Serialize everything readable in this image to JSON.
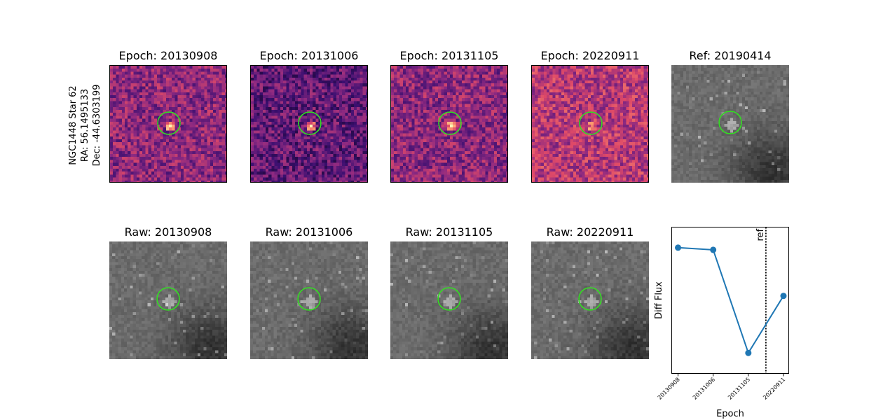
{
  "star_label": {
    "line1": "NGC1448 Star 62",
    "line2": "RA: 56.1495133",
    "line3": "Dec: -44.6303199"
  },
  "top_row": [
    {
      "title": "Epoch: 20130908",
      "colormap": "magma"
    },
    {
      "title": "Epoch: 20131006",
      "colormap": "magma"
    },
    {
      "title": "Epoch: 20131105",
      "colormap": "magma"
    },
    {
      "title": "Epoch: 20220911",
      "colormap": "magma"
    },
    {
      "title": "Ref: 20190414",
      "colormap": "gray"
    }
  ],
  "bottom_row": [
    {
      "title": "Raw: 20130908",
      "colormap": "gray"
    },
    {
      "title": "Raw: 20131006",
      "colormap": "gray"
    },
    {
      "title": "Raw: 20131105",
      "colormap": "gray"
    },
    {
      "title": "Raw: 20220911",
      "colormap": "gray"
    }
  ],
  "marker_color": "#33dd22",
  "chart_data": {
    "type": "line",
    "categories": [
      "20130908",
      "20131006",
      "20131105",
      "20220911"
    ],
    "x": [
      0,
      1,
      2,
      3
    ],
    "values": [
      0.86,
      0.845,
      0.14,
      0.53
    ],
    "xlabel": "Epoch",
    "ylabel": "Diff Flux",
    "ref_line": {
      "label": "ref",
      "x": 2.5
    },
    "xlim": [
      -0.18,
      3.15
    ],
    "ylim": [
      0,
      1
    ],
    "ytick_labels": false,
    "line_color": "#1f77b4",
    "grid": false
  }
}
